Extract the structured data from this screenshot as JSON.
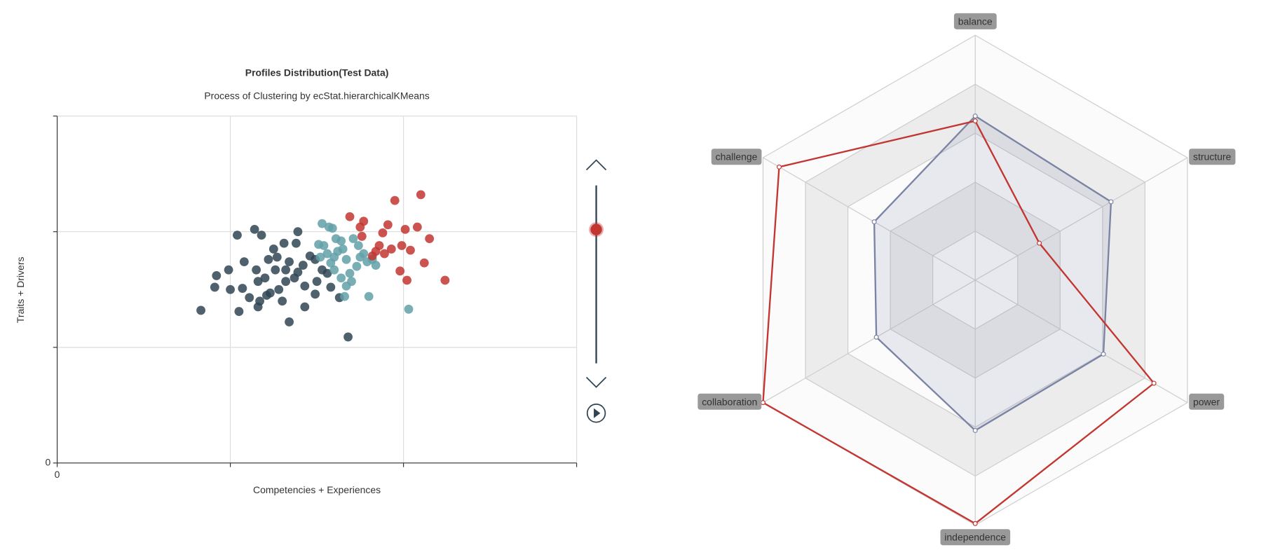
{
  "chart_data": [
    {
      "type": "scatter",
      "title": "Profiles Distribution(Test Data)",
      "subtitle": "Process of Clustering by ecStat.hierarchicalKMeans",
      "x_label": "Competencies + Experiences",
      "y_label": "Traits + Drivers",
      "xlim": [
        0,
        3
      ],
      "ylim": [
        0,
        3
      ],
      "xticks": [
        0,
        {
          "value": 1,
          "label": null
        },
        {
          "value": 2,
          "label": null
        },
        {
          "value": 3,
          "label": null
        }
      ],
      "yticks": [
        0,
        {
          "value": 1,
          "label": null
        },
        {
          "value": 2,
          "label": null
        },
        {
          "value": 3,
          "label": null
        }
      ],
      "grid": true,
      "series": [
        {
          "color": "#2f4554",
          "x": [
            1.14,
            1.18,
            1.04,
            1.25,
            1.31,
            1.38,
            1.39,
            1.46,
            1.22,
            1.27,
            1.34,
            1.42,
            1.49,
            1.15,
            1.08,
            0.99,
            0.92,
            0.91,
            1.0,
            1.07,
            1.16,
            1.2,
            1.26,
            1.32,
            1.37,
            1.43,
            1.5,
            1.56,
            1.58,
            1.53,
            1.11,
            1.16,
            1.21,
            1.3,
            1.43,
            1.05,
            0.83,
            1.34,
            1.68,
            1.63,
            1.28,
            1.23,
            1.17,
            1.49,
            1.39,
            1.32
          ],
          "values": [
            2.02,
            1.97,
            1.97,
            1.85,
            1.9,
            1.9,
            2.0,
            1.79,
            1.76,
            1.78,
            1.74,
            1.71,
            1.76,
            1.67,
            1.74,
            1.67,
            1.62,
            1.52,
            1.5,
            1.51,
            1.57,
            1.6,
            1.67,
            1.57,
            1.6,
            1.53,
            1.57,
            1.64,
            1.52,
            1.67,
            1.43,
            1.35,
            1.45,
            1.4,
            1.35,
            1.31,
            1.32,
            1.22,
            1.09,
            1.43,
            1.5,
            1.47,
            1.4,
            1.46,
            1.65,
            1.67
          ]
        },
        {
          "color": "#61a0a8",
          "x": [
            1.53,
            1.57,
            1.59,
            1.51,
            1.54,
            1.61,
            1.64,
            1.56,
            1.6,
            1.65,
            1.67,
            1.71,
            1.74,
            1.77,
            1.79,
            1.82,
            1.73,
            1.69,
            1.64,
            1.67,
            1.7,
            1.6,
            1.58,
            1.52,
            1.75,
            1.66,
            1.8,
            2.03,
            1.84,
            1.62
          ],
          "values": [
            2.07,
            2.04,
            2.03,
            1.89,
            1.88,
            1.94,
            1.92,
            1.81,
            1.78,
            1.85,
            1.76,
            1.94,
            1.88,
            1.81,
            1.74,
            1.76,
            1.7,
            1.64,
            1.6,
            1.53,
            1.57,
            1.67,
            1.73,
            1.78,
            1.78,
            1.44,
            1.44,
            1.33,
            1.71,
            1.83
          ]
        },
        {
          "color": "#c23531",
          "x": [
            1.95,
            2.1,
            1.69,
            1.77,
            1.91,
            2.08,
            2.01,
            2.15,
            1.75,
            1.76,
            1.88,
            1.86,
            1.93,
            1.99,
            2.04,
            1.89,
            2.12,
            1.98,
            2.02,
            2.24,
            1.82,
            1.84
          ],
          "values": [
            2.27,
            2.32,
            2.13,
            2.09,
            2.06,
            2.04,
            2.02,
            1.94,
            2.04,
            1.96,
            1.99,
            1.88,
            1.85,
            1.88,
            1.84,
            1.81,
            1.73,
            1.66,
            1.58,
            1.58,
            1.79,
            1.83
          ]
        }
      ]
    },
    {
      "type": "radar",
      "indicators": [
        "balance",
        "structure",
        "power",
        "independence",
        "collaboration",
        "challenge"
      ],
      "rlim": [
        0,
        5
      ],
      "split_number": 5,
      "series": [
        {
          "color": "#7b83a5",
          "area_opacity": 0.15,
          "values": [
            3.35,
            3.2,
            3.02,
            3.07,
            2.33,
            2.38
          ]
        },
        {
          "color": "#c23531",
          "values": [
            3.25,
            1.51,
            4.21,
            4.97,
            5.0,
            4.62
          ]
        }
      ]
    }
  ]
}
